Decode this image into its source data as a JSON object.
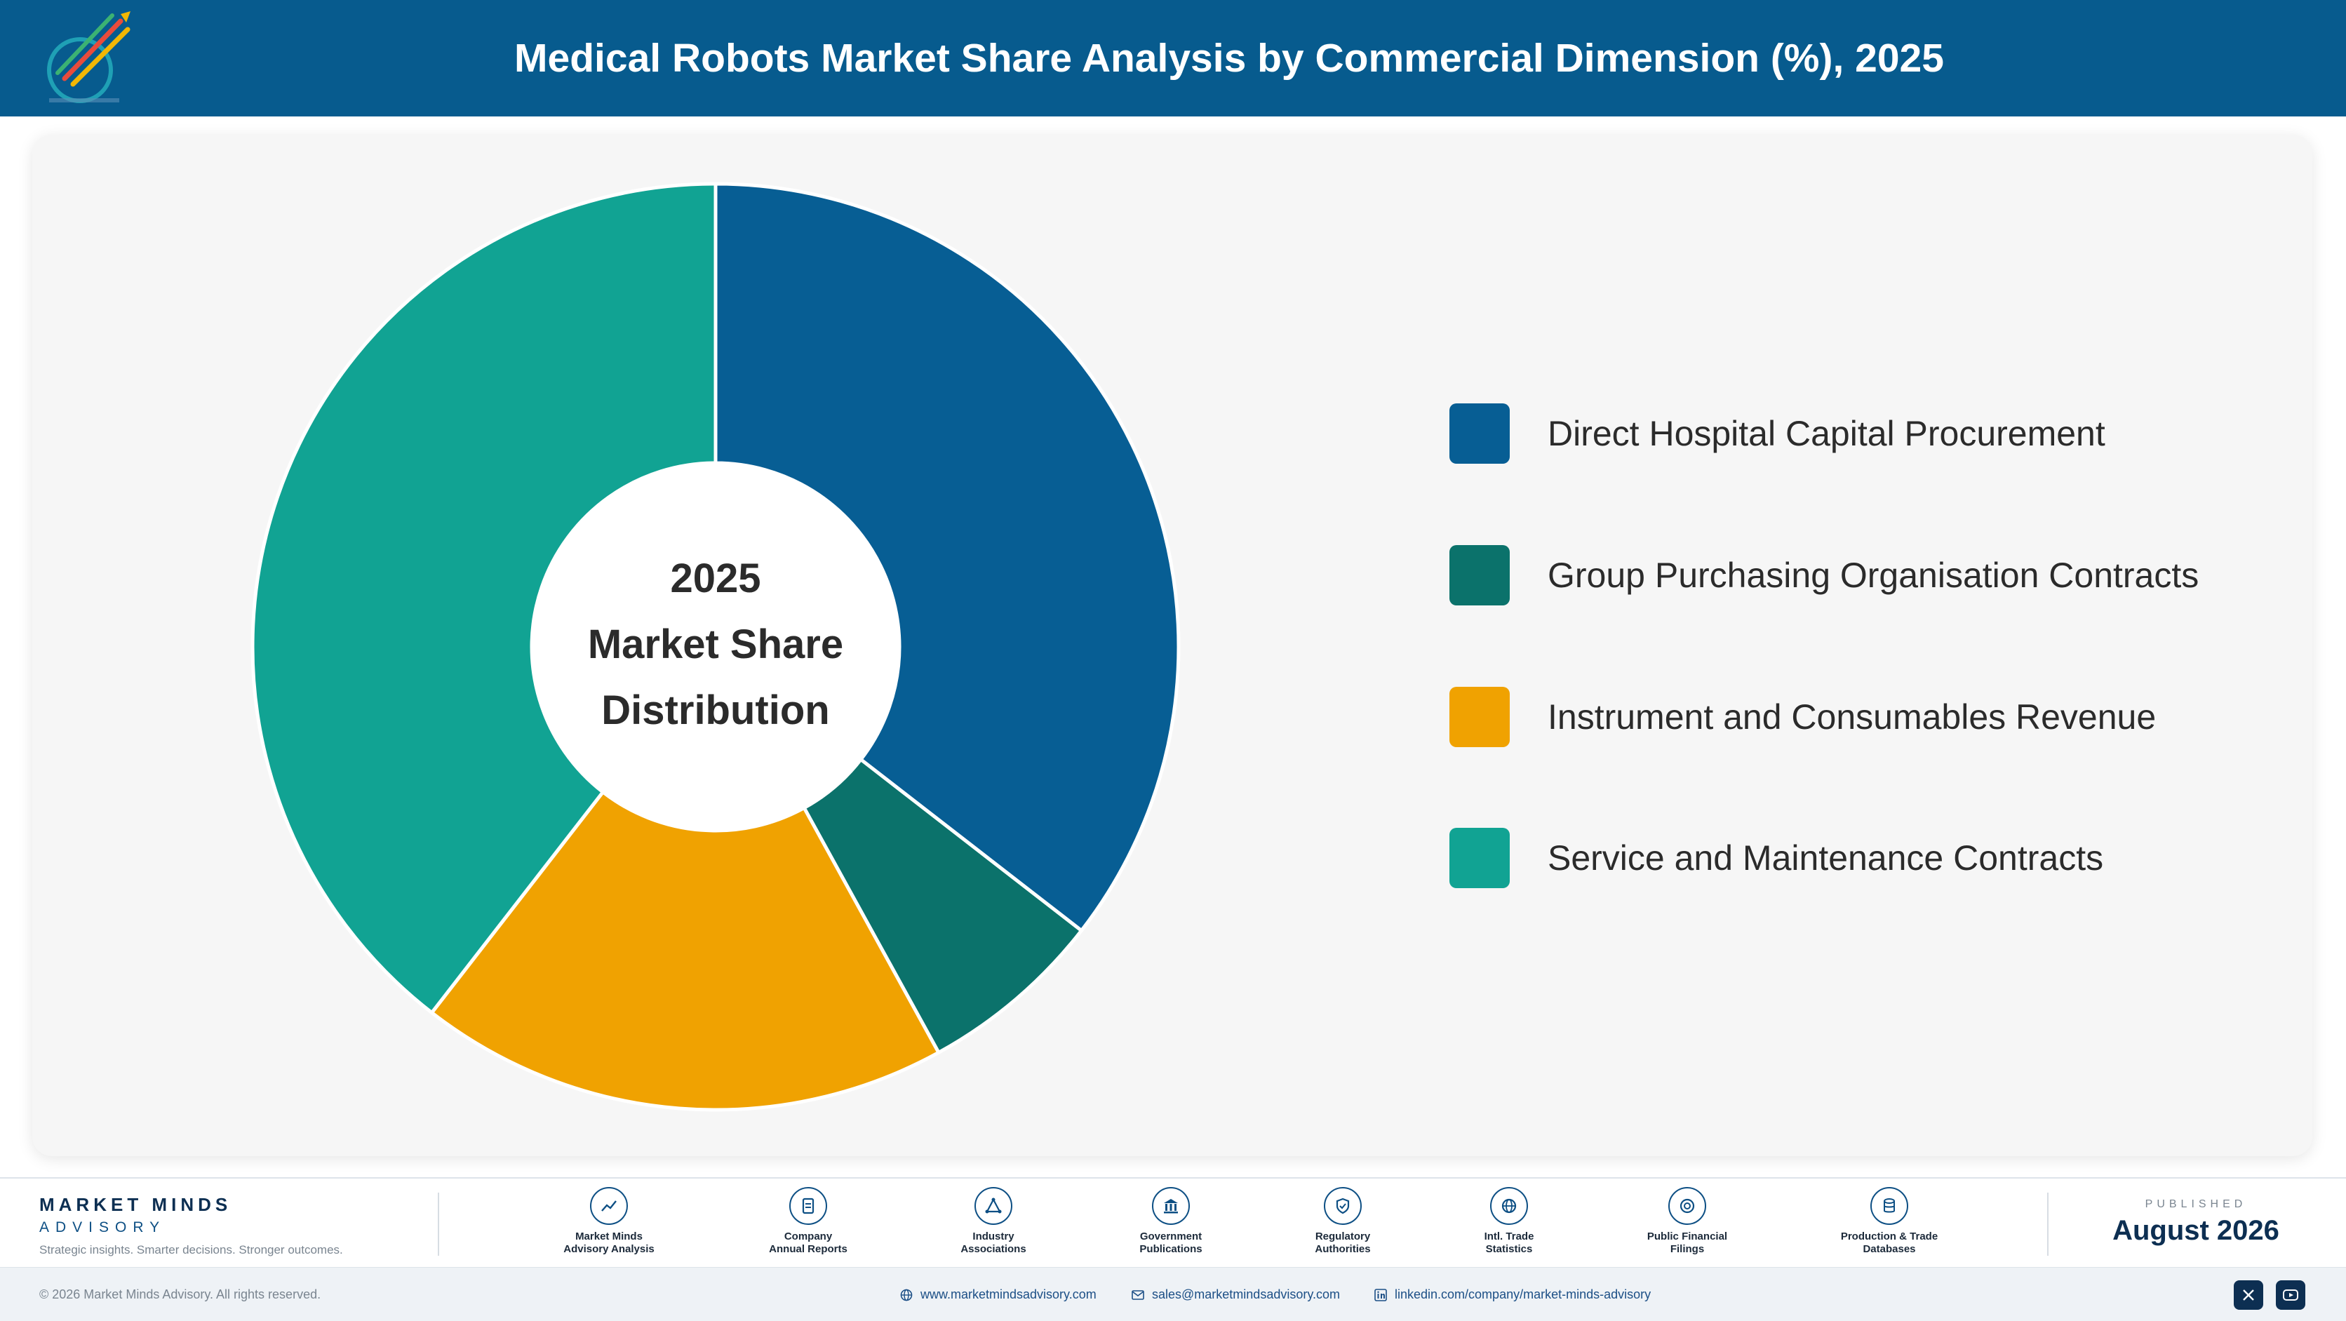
{
  "header": {
    "title": "Medical Robots Market Share Analysis by Commercial Dimension (%), 2025"
  },
  "colors": {
    "header_bg": "#075b8e",
    "direct_hospital": "#075e94",
    "group_purchasing": "#0b726b",
    "instrument_consumables": "#f0a201",
    "service_maintenance": "#11a393"
  },
  "chart_data": {
    "type": "pie",
    "style": "donut",
    "center_text": [
      "2025",
      "Market Share",
      "Distribution"
    ],
    "categories": [
      "Direct Hospital Capital Procurement",
      "Group Purchasing Organisation Contracts",
      "Instrument and Consumables Revenue",
      "Service and Maintenance Contracts"
    ],
    "values": [
      35.5,
      6.5,
      18.5,
      39.5
    ],
    "colors": [
      "#075e94",
      "#0b726b",
      "#f0a201",
      "#11a393"
    ],
    "legend_position": "right"
  },
  "footer": {
    "brand_name": "MARKET MINDS",
    "brand_sub": "ADVISORY",
    "brand_tagline": "Strategic insights. Smarter decisions. Stronger outcomes.",
    "sources": [
      {
        "label": "Market Minds\nAdvisory Analysis",
        "icon": "chart-line-icon"
      },
      {
        "label": "Company\nAnnual Reports",
        "icon": "document-icon"
      },
      {
        "label": "Industry\nAssociations",
        "icon": "network-icon"
      },
      {
        "label": "Government\nPublications",
        "icon": "building-icon"
      },
      {
        "label": "Regulatory\nAuthorities",
        "icon": "shield-icon"
      },
      {
        "label": "Intl. Trade\nStatistics",
        "icon": "globe-icon"
      },
      {
        "label": "Public Financial\nFilings",
        "icon": "coin-icon"
      },
      {
        "label": "Production & Trade\nDatabases",
        "icon": "database-icon"
      }
    ],
    "published_label": "PUBLISHED",
    "published_date": "August 2026",
    "copyright": "© 2026 Market Minds Advisory. All rights reserved.",
    "website": "www.marketmindsadvisory.com",
    "email": "sales@marketmindsadvisory.com",
    "linkedin": "linkedin.com/company/market-minds-advisory"
  }
}
